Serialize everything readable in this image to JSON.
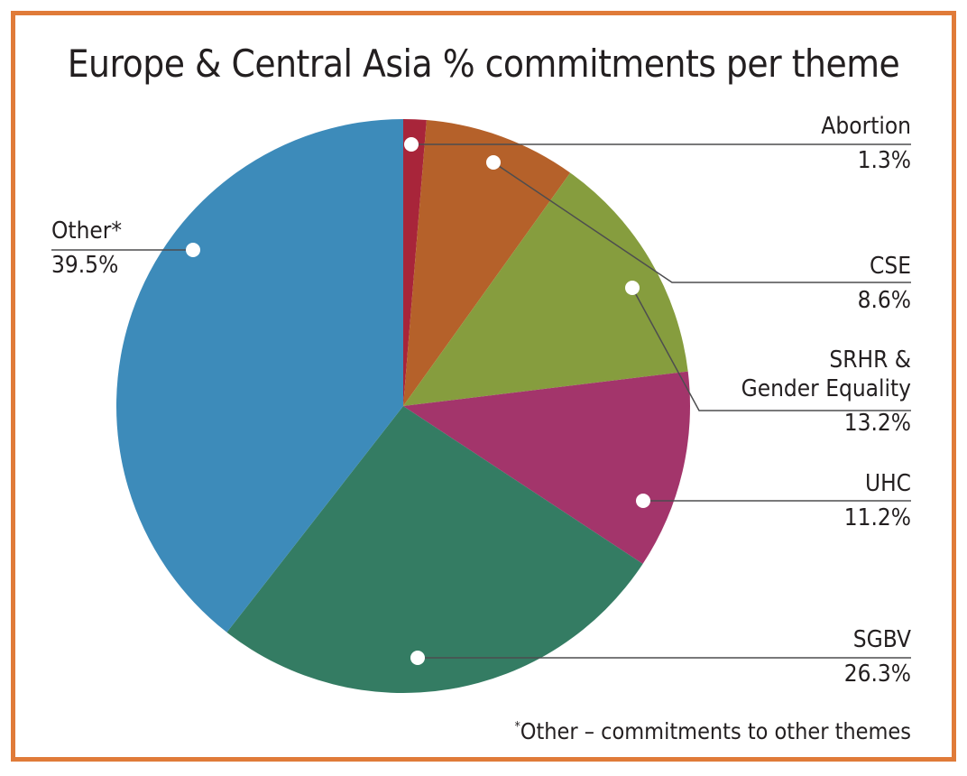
{
  "chart_data": {
    "type": "pie",
    "title": "Europe & Central Asia % commitments per theme",
    "slices": [
      {
        "label": "Abortion",
        "value": 1.3,
        "value_label": "1.3%",
        "color": "#a8253a"
      },
      {
        "label": "CSE",
        "value": 8.6,
        "value_label": "8.6%",
        "color": "#b5612a"
      },
      {
        "label": "SRHR & Gender Equality",
        "label_lines": [
          "SRHR &",
          "Gender Equality"
        ],
        "value": 13.2,
        "value_label": "13.2%",
        "color": "#869d3e"
      },
      {
        "label": "UHC",
        "value": 11.2,
        "value_label": "11.2%",
        "color": "#a3356b"
      },
      {
        "label": "SGBV",
        "value": 26.3,
        "value_label": "26.3%",
        "color": "#347c63"
      },
      {
        "label": "Other*",
        "value": 39.5,
        "value_label": "39.5%",
        "color": "#3d8bba"
      }
    ],
    "start_angle": "12 o'clock",
    "direction": "clockwise",
    "footnote_mark": "*",
    "footnote": "Other – commitments to other themes"
  },
  "frame_color": "#e07b39"
}
